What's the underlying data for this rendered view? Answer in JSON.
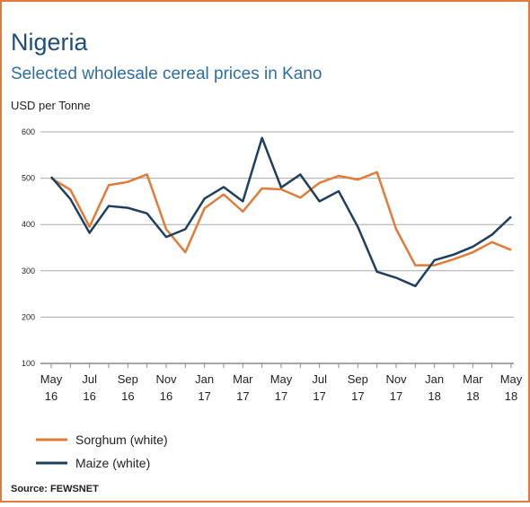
{
  "chart_data": {
    "type": "line",
    "title": "Nigeria",
    "subtitle": "Selected wholesale cereal prices in Kano",
    "y_label": "USD per Tonne",
    "source": "Source: FEWSNET",
    "categories": [
      "May 16",
      null,
      "Jul 16",
      null,
      "Sep 16",
      null,
      "Nov 16",
      null,
      "Jan 17",
      null,
      "Mar 17",
      null,
      "May 17",
      null,
      "Jul 17",
      null,
      "Sep 17",
      null,
      "Nov 17",
      null,
      "Jan 18",
      null,
      "Mar 18",
      null,
      "May 18"
    ],
    "series": [
      {
        "name": "Sorghum (white)",
        "color": "#e07b39",
        "values": [
          500,
          475,
          395,
          485,
          492,
          508,
          390,
          340,
          435,
          465,
          428,
          478,
          476,
          458,
          490,
          505,
          497,
          513,
          390,
          312,
          312,
          325,
          340,
          362,
          345
        ]
      },
      {
        "name": "Maize (white)",
        "color": "#1f3f5e",
        "values": [
          503,
          455,
          382,
          440,
          436,
          424,
          373,
          390,
          456,
          481,
          450,
          587,
          480,
          508,
          450,
          472,
          395,
          298,
          285,
          267,
          323,
          335,
          352,
          378,
          417
        ]
      }
    ],
    "ylim": [
      100,
      600
    ],
    "yticks": [
      100,
      200,
      300,
      400,
      500,
      600
    ],
    "grid": true,
    "legend": "bottom-left"
  }
}
